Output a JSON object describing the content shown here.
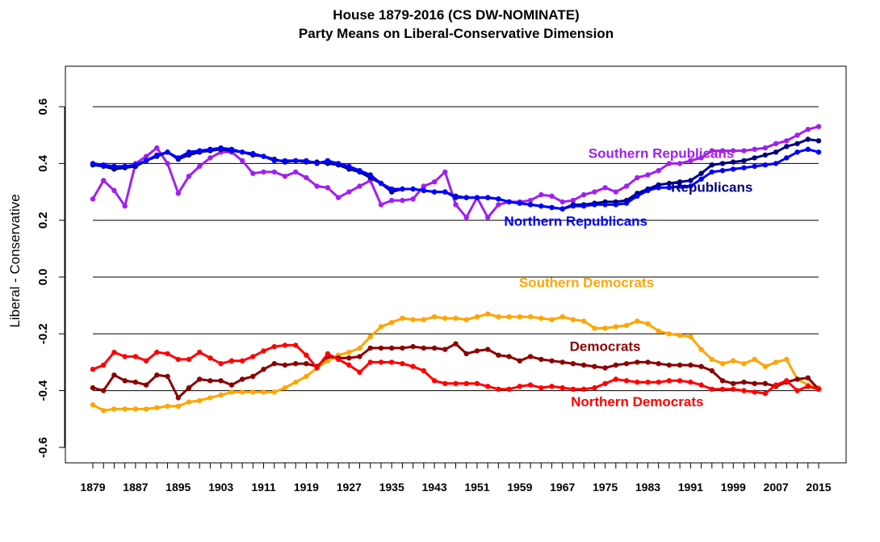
{
  "chart_data": {
    "type": "line",
    "title": "House 1879-2016 (CS DW-NOMINATE)",
    "subtitle": "Party Means on Liberal-Conservative Dimension",
    "xlabel": "",
    "ylabel": "Liberal - Conservative",
    "xlim": [
      1879,
      2015
    ],
    "ylim": [
      -0.65,
      0.75
    ],
    "grid": "horizontal",
    "legend": "inline labels",
    "x_ticks": [
      "1879",
      "1887",
      "1895",
      "1903",
      "1911",
      "1919",
      "1927",
      "1935",
      "1943",
      "1951",
      "1959",
      "1967",
      "1975",
      "1983",
      "1991",
      "1999",
      "2007",
      "2015"
    ],
    "y_ticks": [
      "-0.6",
      "-0.4",
      "-0.2",
      "0.0",
      "0.2",
      "0.4",
      "0.6"
    ],
    "gridlines": [
      -0.4,
      -0.2,
      0.0,
      0.2,
      0.4,
      0.6
    ],
    "x": [
      1879,
      1881,
      1883,
      1885,
      1887,
      1889,
      1891,
      1893,
      1895,
      1897,
      1899,
      1901,
      1903,
      1905,
      1907,
      1909,
      1911,
      1913,
      1915,
      1917,
      1919,
      1921,
      1923,
      1925,
      1927,
      1929,
      1931,
      1933,
      1935,
      1937,
      1939,
      1941,
      1943,
      1945,
      1947,
      1949,
      1951,
      1953,
      1955,
      1957,
      1959,
      1961,
      1963,
      1965,
      1967,
      1969,
      1971,
      1973,
      1975,
      1977,
      1979,
      1981,
      1983,
      1985,
      1987,
      1989,
      1991,
      1993,
      1995,
      1997,
      1999,
      2001,
      2003,
      2005,
      2007,
      2009,
      2011,
      2013,
      2015
    ],
    "series": [
      {
        "name": "Southern Republicans",
        "color": "#A020F0",
        "label_year": 1985.5,
        "label_y": 0.42,
        "values": [
          0.275,
          0.34,
          0.305,
          0.25,
          0.4,
          0.425,
          0.455,
          0.4,
          0.295,
          0.355,
          0.39,
          0.42,
          0.44,
          0.44,
          0.41,
          0.365,
          0.37,
          0.37,
          0.355,
          0.37,
          0.35,
          0.32,
          0.315,
          0.28,
          0.3,
          0.32,
          0.34,
          0.255,
          0.27,
          0.27,
          0.275,
          0.32,
          0.335,
          0.37,
          0.255,
          0.21,
          0.28,
          0.21,
          0.255,
          0.265,
          0.265,
          0.27,
          0.29,
          0.285,
          0.265,
          0.27,
          0.29,
          0.3,
          0.315,
          0.3,
          0.32,
          0.35,
          0.36,
          0.375,
          0.4,
          0.4,
          0.41,
          0.42,
          0.445,
          0.445,
          0.445,
          0.445,
          0.45,
          0.455,
          0.47,
          0.48,
          0.5,
          0.52,
          0.53
        ]
      },
      {
        "name": "Republicans",
        "color": "#000080",
        "label_year": 1995,
        "label_y": 0.3,
        "values": [
          0.395,
          0.39,
          0.38,
          0.385,
          0.39,
          0.41,
          0.425,
          0.44,
          0.415,
          0.43,
          0.44,
          0.445,
          0.45,
          0.445,
          0.44,
          0.43,
          0.425,
          0.415,
          0.405,
          0.41,
          0.405,
          0.405,
          0.4,
          0.395,
          0.38,
          0.37,
          0.35,
          0.33,
          0.3,
          0.31,
          0.31,
          0.305,
          0.3,
          0.3,
          0.285,
          0.28,
          0.28,
          0.28,
          0.275,
          0.265,
          0.26,
          0.255,
          0.25,
          0.245,
          0.24,
          0.255,
          0.255,
          0.26,
          0.265,
          0.265,
          0.27,
          0.295,
          0.31,
          0.325,
          0.33,
          0.335,
          0.34,
          0.365,
          0.395,
          0.4,
          0.405,
          0.41,
          0.42,
          0.43,
          0.44,
          0.46,
          0.47,
          0.485,
          0.48
        ]
      },
      {
        "name": "Northern Republicans",
        "color": "#0000FF",
        "label_year": 1969.5,
        "label_y": 0.18,
        "values": [
          0.4,
          0.395,
          0.39,
          0.39,
          0.395,
          0.41,
          0.43,
          0.44,
          0.42,
          0.44,
          0.445,
          0.45,
          0.455,
          0.45,
          0.44,
          0.435,
          0.425,
          0.41,
          0.41,
          0.41,
          0.41,
          0.4,
          0.41,
          0.4,
          0.39,
          0.375,
          0.36,
          0.33,
          0.31,
          0.31,
          0.31,
          0.305,
          0.3,
          0.3,
          0.28,
          0.28,
          0.28,
          0.28,
          0.275,
          0.265,
          0.26,
          0.255,
          0.25,
          0.245,
          0.24,
          0.25,
          0.25,
          0.255,
          0.255,
          0.255,
          0.26,
          0.285,
          0.305,
          0.315,
          0.315,
          0.32,
          0.32,
          0.345,
          0.37,
          0.375,
          0.38,
          0.385,
          0.39,
          0.395,
          0.4,
          0.42,
          0.44,
          0.45,
          0.44
        ]
      },
      {
        "name": "Southern Democrats",
        "color": "#FFA500",
        "label_year": 1971.5,
        "label_y": -0.035,
        "values": [
          -0.45,
          -0.47,
          -0.465,
          -0.465,
          -0.465,
          -0.465,
          -0.46,
          -0.455,
          -0.455,
          -0.44,
          -0.435,
          -0.425,
          -0.415,
          -0.405,
          -0.405,
          -0.405,
          -0.405,
          -0.405,
          -0.39,
          -0.37,
          -0.35,
          -0.32,
          -0.295,
          -0.275,
          -0.265,
          -0.25,
          -0.21,
          -0.175,
          -0.16,
          -0.145,
          -0.15,
          -0.15,
          -0.14,
          -0.145,
          -0.145,
          -0.15,
          -0.14,
          -0.13,
          -0.14,
          -0.14,
          -0.14,
          -0.14,
          -0.145,
          -0.15,
          -0.14,
          -0.15,
          -0.155,
          -0.18,
          -0.18,
          -0.175,
          -0.17,
          -0.155,
          -0.165,
          -0.19,
          -0.2,
          -0.205,
          -0.21,
          -0.255,
          -0.29,
          -0.305,
          -0.295,
          -0.305,
          -0.29,
          -0.315,
          -0.3,
          -0.29,
          -0.36,
          -0.38,
          -0.39
        ]
      },
      {
        "name": "Democrats",
        "color": "#8B0000",
        "label_year": 1975,
        "label_y": -0.26,
        "values": [
          -0.39,
          -0.4,
          -0.345,
          -0.365,
          -0.37,
          -0.38,
          -0.345,
          -0.35,
          -0.425,
          -0.39,
          -0.36,
          -0.365,
          -0.365,
          -0.38,
          -0.36,
          -0.35,
          -0.325,
          -0.305,
          -0.31,
          -0.305,
          -0.305,
          -0.315,
          -0.28,
          -0.285,
          -0.285,
          -0.28,
          -0.25,
          -0.25,
          -0.25,
          -0.25,
          -0.245,
          -0.25,
          -0.25,
          -0.255,
          -0.235,
          -0.27,
          -0.26,
          -0.255,
          -0.275,
          -0.28,
          -0.295,
          -0.28,
          -0.29,
          -0.295,
          -0.3,
          -0.305,
          -0.31,
          -0.315,
          -0.32,
          -0.31,
          -0.305,
          -0.3,
          -0.3,
          -0.305,
          -0.31,
          -0.31,
          -0.31,
          -0.315,
          -0.33,
          -0.365,
          -0.375,
          -0.37,
          -0.375,
          -0.375,
          -0.385,
          -0.37,
          -0.36,
          -0.355,
          -0.395
        ]
      },
      {
        "name": "Northern Democrats",
        "color": "#FF0000",
        "label_year": 1981,
        "label_y": -0.455,
        "values": [
          -0.325,
          -0.31,
          -0.265,
          -0.28,
          -0.28,
          -0.295,
          -0.265,
          -0.27,
          -0.29,
          -0.29,
          -0.265,
          -0.285,
          -0.305,
          -0.295,
          -0.295,
          -0.28,
          -0.26,
          -0.245,
          -0.24,
          -0.24,
          -0.275,
          -0.32,
          -0.27,
          -0.29,
          -0.31,
          -0.335,
          -0.3,
          -0.3,
          -0.3,
          -0.305,
          -0.315,
          -0.33,
          -0.365,
          -0.375,
          -0.375,
          -0.375,
          -0.375,
          -0.385,
          -0.395,
          -0.395,
          -0.385,
          -0.38,
          -0.39,
          -0.385,
          -0.39,
          -0.395,
          -0.395,
          -0.39,
          -0.375,
          -0.36,
          -0.365,
          -0.37,
          -0.37,
          -0.37,
          -0.365,
          -0.365,
          -0.37,
          -0.38,
          -0.395,
          -0.395,
          -0.395,
          -0.4,
          -0.405,
          -0.41,
          -0.38,
          -0.365,
          -0.4,
          -0.385,
          -0.395
        ]
      }
    ]
  }
}
